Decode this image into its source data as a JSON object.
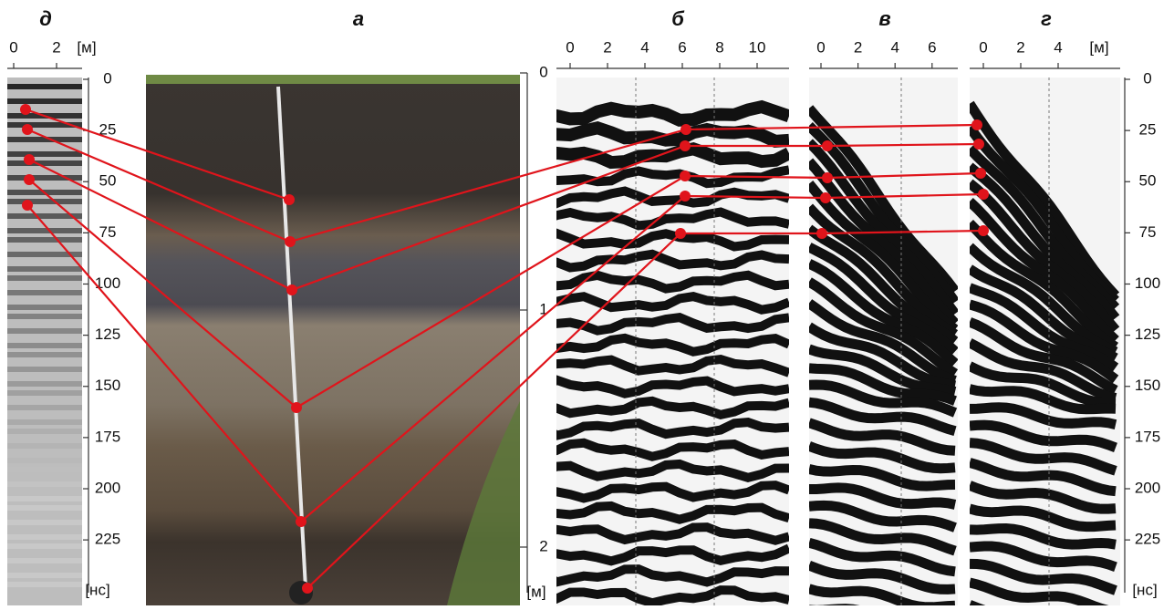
{
  "panels": {
    "d": {
      "label": "д",
      "xticks": [
        0,
        2
      ],
      "unit": "[м]"
    },
    "a": {
      "label": "а"
    },
    "b": {
      "label": "б",
      "xticks": [
        0,
        2,
        4,
        6,
        8,
        10
      ]
    },
    "v": {
      "label": "в",
      "xticks": [
        0,
        2,
        4,
        6
      ]
    },
    "g": {
      "label": "г",
      "xticks": [
        0,
        2,
        4
      ],
      "unit": "[м]"
    }
  },
  "time_axis": {
    "ticks": [
      0,
      25,
      50,
      75,
      100,
      125,
      150,
      175,
      200,
      225
    ],
    "unit": "[нс]"
  },
  "depth_axis": {
    "ticks": [
      0,
      1,
      2
    ],
    "unit": "[м]"
  }
}
